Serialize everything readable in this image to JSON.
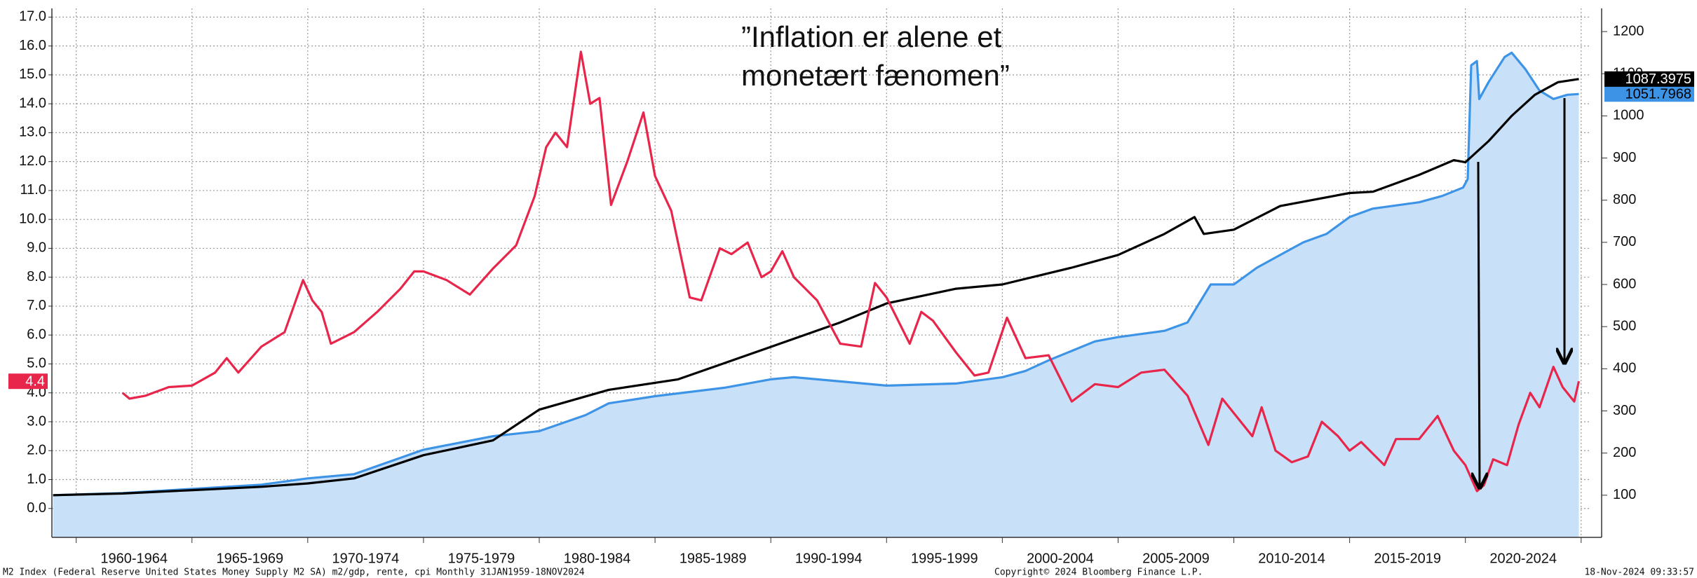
{
  "chart_data": {
    "type": "line",
    "annotation": [
      "”Inflation er alene et",
      "monetært fænomen”"
    ],
    "footer_left": "M2 Index (Federal Reserve United States Money Supply M2 SA) m2/gdp, rente, cpi  Monthly 31JAN1959-18NOV2024",
    "footer_center": "Copyright© 2024 Bloomberg Finance L.P.",
    "footer_right": "18-Nov-2024 09:33:57",
    "xlim": [
      1958.95,
      2025.4
    ],
    "xticks": [
      {
        "value": 1962.5,
        "label": "1960-1964"
      },
      {
        "value": 1967.5,
        "label": "1965-1969"
      },
      {
        "value": 1972.5,
        "label": "1970-1974"
      },
      {
        "value": 1977.5,
        "label": "1975-1979"
      },
      {
        "value": 1982.5,
        "label": "1980-1984"
      },
      {
        "value": 1987.5,
        "label": "1985-1989"
      },
      {
        "value": 1992.5,
        "label": "1990-1994"
      },
      {
        "value": 1997.5,
        "label": "1995-1999"
      },
      {
        "value": 2002.5,
        "label": "2000-2004"
      },
      {
        "value": 2007.5,
        "label": "2005-2009"
      },
      {
        "value": 2012.5,
        "label": "2010-2014"
      },
      {
        "value": 2017.5,
        "label": "2015-2019"
      },
      {
        "value": 2022.5,
        "label": "2020-2024"
      }
    ],
    "xgrid": [
      1960,
      1965,
      1970,
      1975,
      1980,
      1985,
      1990,
      1995,
      2000,
      2005,
      2010,
      2015,
      2020,
      2025
    ],
    "ylim": [
      -1,
      17.3
    ],
    "yticks": [
      {
        "value": 0,
        "label": "0.0"
      },
      {
        "value": 1,
        "label": "1.0"
      },
      {
        "value": 2,
        "label": "2.0"
      },
      {
        "value": 3,
        "label": "3.0"
      },
      {
        "value": 4,
        "label": "4.0"
      },
      {
        "value": 5,
        "label": "5.0"
      },
      {
        "value": 6,
        "label": "6.0"
      },
      {
        "value": 7,
        "label": "7.0"
      },
      {
        "value": 8,
        "label": "8.0"
      },
      {
        "value": 9,
        "label": "9.0"
      },
      {
        "value": 10,
        "label": "10.0"
      },
      {
        "value": 11,
        "label": "11.0"
      },
      {
        "value": 12,
        "label": "12.0"
      },
      {
        "value": 13,
        "label": "13.0"
      },
      {
        "value": 14,
        "label": "14.0"
      },
      {
        "value": 15,
        "label": "15.0"
      },
      {
        "value": 16,
        "label": "16.0"
      },
      {
        "value": 17,
        "label": "17.0"
      }
    ],
    "y2lim": [
      0,
      1255
    ],
    "y2ticks": [
      100,
      200,
      300,
      400,
      500,
      600,
      700,
      800,
      900,
      1000,
      1100,
      1200
    ],
    "grid": true,
    "series": [
      {
        "color": "#3d94e6",
        "fill": "#c8e0f8",
        "axis": "y2",
        "area": true,
        "end_label": 1051.7968,
        "x": [
          1959,
          1962,
          1965,
          1968,
          1970,
          1972,
          1975,
          1978,
          1980,
          1982,
          1983,
          1985,
          1988,
          1990,
          1991,
          1993,
          1995,
          1998,
          2000,
          2001,
          2002,
          2004,
          2005,
          2007,
          2008,
          2009,
          2010,
          2011,
          2012,
          2013,
          2014,
          2015,
          2016,
          2018,
          2019,
          2019.9,
          2020.1,
          2020.25,
          2020.5,
          2020.6,
          2021,
          2021.7,
          2022,
          2022.6,
          2023.2,
          2023.8,
          2024.4,
          2024.9
        ],
        "values": [
          100,
          105,
          115,
          125,
          140,
          150,
          208,
          240,
          252,
          290,
          318,
          335,
          355,
          375,
          380,
          370,
          360,
          365,
          380,
          395,
          420,
          465,
          475,
          490,
          510,
          600,
          600,
          640,
          670,
          700,
          720,
          760,
          780,
          795,
          810,
          830,
          850,
          1120,
          1130,
          1040,
          1080,
          1140,
          1150,
          1110,
          1060,
          1040,
          1050,
          1051.7968
        ]
      },
      {
        "color": "#000000",
        "axis": "y2",
        "end_label": 1087.3975,
        "x": [
          1959,
          1962,
          1965,
          1968,
          1970,
          1972,
          1975,
          1978,
          1980,
          1983,
          1986,
          1990,
          1993,
          1995,
          1998,
          2000,
          2003,
          2005,
          2007,
          2008.3,
          2008.7,
          2010,
          2012,
          2015,
          2016,
          2018,
          2019.5,
          2020,
          2021,
          2022,
          2023,
          2024,
          2024.9
        ],
        "values": [
          100,
          104,
          112,
          120,
          128,
          140,
          195,
          230,
          303,
          350,
          375,
          452,
          510,
          555,
          590,
          600,
          640,
          670,
          720,
          760,
          720,
          730,
          786,
          817,
          820,
          860,
          895,
          890,
          940,
          1000,
          1050,
          1080,
          1087.3975
        ]
      },
      {
        "color": "#e8254a",
        "axis": "y",
        "end_label": 4.4,
        "x": [
          1962.0,
          1962.3,
          1963,
          1964,
          1965,
          1966,
          1966.5,
          1967,
          1968,
          1969,
          1969.8,
          1970.2,
          1970.6,
          1971,
          1972,
          1973,
          1974,
          1974.6,
          1975,
          1976,
          1977,
          1978,
          1979,
          1979.8,
          1980.3,
          1980.7,
          1981.2,
          1981.8,
          1982.2,
          1982.6,
          1983.1,
          1983.8,
          1984.5,
          1985,
          1985.7,
          1986.5,
          1987,
          1987.8,
          1988.3,
          1989,
          1989.6,
          1990,
          1990.5,
          1991,
          1992,
          1993,
          1993.9,
          1994.5,
          1995,
          1996,
          1996.5,
          1997,
          1998,
          1998.8,
          1999.4,
          2000.2,
          2001,
          2002,
          2003,
          2004,
          2005,
          2006,
          2007,
          2008,
          2008.9,
          2009.5,
          2010,
          2010.8,
          2011.2,
          2011.8,
          2012.5,
          2013.2,
          2013.8,
          2014.5,
          2015,
          2015.5,
          2016.5,
          2017,
          2018,
          2018.8,
          2019.5,
          2020,
          2020.5,
          2020.8,
          2021.2,
          2021.8,
          2022.3,
          2022.8,
          2023.2,
          2023.8,
          2024.2,
          2024.7,
          2024.9
        ],
        "values": [
          4.0,
          3.8,
          3.9,
          4.2,
          4.25,
          4.7,
          5.2,
          4.7,
          5.6,
          6.1,
          7.9,
          7.2,
          6.8,
          5.7,
          6.1,
          6.8,
          7.6,
          8.2,
          8.2,
          7.9,
          7.4,
          8.3,
          9.1,
          10.8,
          12.5,
          13.0,
          12.5,
          15.8,
          14.0,
          14.2,
          10.5,
          12.0,
          13.7,
          11.5,
          10.3,
          7.3,
          7.2,
          9.0,
          8.8,
          9.2,
          8.0,
          8.2,
          8.9,
          8.0,
          7.2,
          5.7,
          5.6,
          7.8,
          7.3,
          5.7,
          6.8,
          6.5,
          5.4,
          4.6,
          4.7,
          6.6,
          5.2,
          5.3,
          3.7,
          4.3,
          4.2,
          4.7,
          4.8,
          3.9,
          2.2,
          3.8,
          3.3,
          2.5,
          3.5,
          2.0,
          1.6,
          1.8,
          3.0,
          2.5,
          2.0,
          2.3,
          1.5,
          2.4,
          2.4,
          3.2,
          2.0,
          1.5,
          0.6,
          0.8,
          1.7,
          1.5,
          2.9,
          4.0,
          3.5,
          4.9,
          4.2,
          3.7,
          4.4
        ]
      }
    ]
  }
}
